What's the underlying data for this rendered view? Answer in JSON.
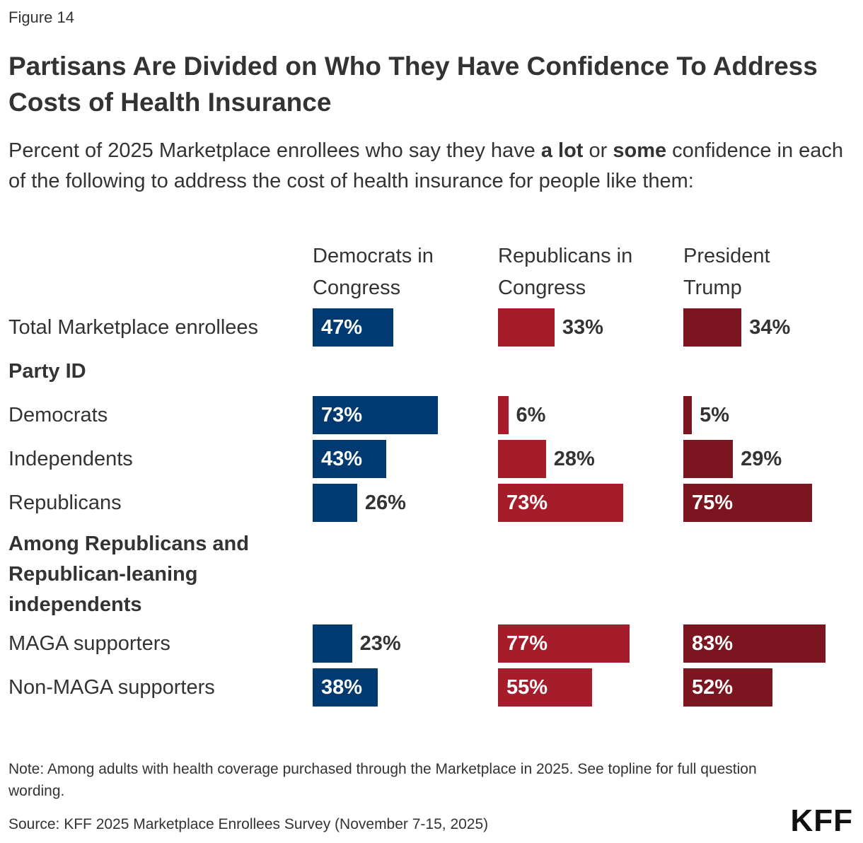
{
  "figure_label": "Figure 14",
  "title": "Partisans Are Divided on Who They Have Confidence To Address Costs of Health Insurance",
  "subtitle": {
    "part1": "Percent of 2025 Marketplace enrollees who say they have ",
    "bold1": "a lot",
    "part2": " or ",
    "bold2": "some",
    "part3": " confidence in each of the following to address the cost of health insurance for people like them:"
  },
  "note": "Note: Among adults with health coverage purchased through the Marketplace in 2025. See topline for full question wording.",
  "source": "Source: KFF 2025 Marketplace Enrollees Survey (November 7-15, 2025)",
  "logo": "KFF",
  "colors": {
    "democrats_in_congress": "#003A70",
    "republicans_in_congress": "#A51C2A",
    "president_trump": "#7B1520",
    "text": "#333333"
  },
  "chart_data": {
    "type": "bar",
    "orientation": "horizontal",
    "value_unit": "%",
    "columns": [
      "Democrats in\nCongress",
      "Republicans in\nCongress",
      "President\nTrump"
    ],
    "groups": [
      {
        "label": "",
        "rows": [
          "Total Marketplace enrollees"
        ]
      },
      {
        "label": "Party ID",
        "rows": [
          "Democrats",
          "Independents",
          "Republicans"
        ]
      },
      {
        "label": "Among Republicans and Republican-leaning independents",
        "rows": [
          "MAGA supporters",
          "Non-MAGA supporters"
        ]
      }
    ],
    "rows": [
      "Total Marketplace enrollees",
      "Democrats",
      "Independents",
      "Republicans",
      "MAGA supporters",
      "Non-MAGA supporters"
    ],
    "series": [
      {
        "name": "Democrats in\nCongress",
        "color": "#003A70",
        "values": [
          47,
          73,
          43,
          26,
          23,
          38
        ],
        "labels": [
          "47%",
          "73%",
          "43%",
          "26%",
          "23%",
          "38%"
        ]
      },
      {
        "name": "Republicans in\nCongress",
        "color": "#A51C2A",
        "values": [
          33,
          6,
          28,
          73,
          77,
          55
        ],
        "labels": [
          "33%",
          "6%",
          "28%",
          "73%",
          "77%",
          "55%"
        ]
      },
      {
        "name": "President\nTrump",
        "color": "#7B1520",
        "values": [
          34,
          5,
          29,
          75,
          83,
          52
        ],
        "labels": [
          "34%",
          "5%",
          "29%",
          "75%",
          "83%",
          "52%"
        ]
      }
    ],
    "xlim": [
      0,
      100
    ],
    "legend": "none",
    "grid": false
  }
}
